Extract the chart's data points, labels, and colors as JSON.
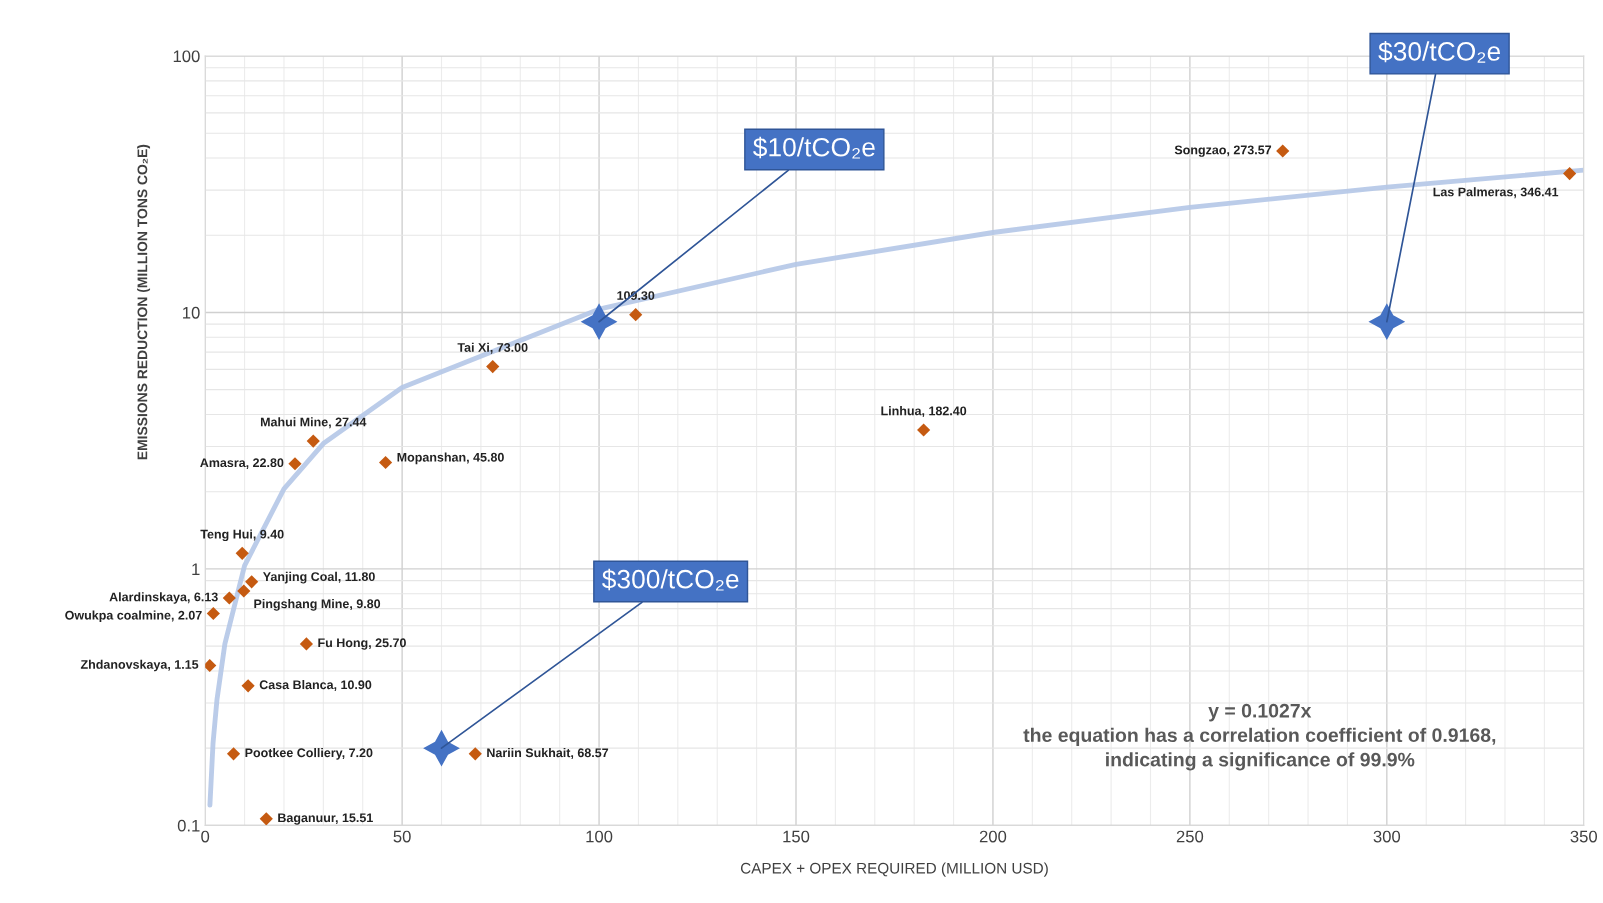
{
  "chart_data": {
    "type": "scatter",
    "xlabel": "CAPEX + OPEX REQUIRED (MILLION USD)",
    "ylabel": "EMISSIONS REDUCTION (MILLION TONS CO₂E)",
    "xlim": [
      0,
      350
    ],
    "xticks": [
      0,
      50,
      100,
      150,
      200,
      250,
      300,
      350
    ],
    "ylim": [
      0.1,
      100
    ],
    "yticks": [
      0.1,
      1,
      10,
      100
    ],
    "log": "y",
    "grid": true,
    "series": [
      {
        "type": "line",
        "color": "#b4c7e7",
        "marker": "none",
        "line_style": "solid",
        "x": [
          1.2,
          2,
          3,
          5,
          10,
          20,
          30,
          50,
          100,
          150,
          200,
          250,
          300,
          350
        ],
        "values": [
          0.12,
          0.21,
          0.31,
          0.51,
          1.03,
          2.05,
          3.08,
          5.1,
          10.3,
          15.4,
          20.5,
          25.7,
          30.8,
          35.9
        ]
      },
      {
        "color": "#c55a11",
        "marker": "diamond",
        "x": [
          273.57,
          346.41,
          109.3,
          73.0,
          182.4,
          27.44,
          22.8,
          45.8,
          9.4,
          11.8,
          9.8,
          6.13,
          2.07,
          25.7,
          1.15,
          10.9,
          7.2,
          68.57,
          15.51
        ],
        "values": [
          42.6,
          34.8,
          9.8,
          6.15,
          3.48,
          3.15,
          2.57,
          2.6,
          1.15,
          0.89,
          0.82,
          0.77,
          0.67,
          0.51,
          0.42,
          0.35,
          0.19,
          0.19,
          0.106
        ]
      },
      {
        "color": "#4472c4",
        "marker": "star",
        "x": [
          100,
          60,
          300
        ],
        "values": [
          9.2,
          0.2,
          9.2
        ]
      }
    ],
    "annotations": [
      {
        "text": "Songzao, 273.57",
        "x": 273.57,
        "y": 42.6
      },
      {
        "text": "Las Palmeras, 346.41",
        "x": 346.41,
        "y": 34.8
      },
      {
        "text": "109.30",
        "x": 109.3,
        "y": 9.8
      },
      {
        "text": "Tai Xi, 73.00",
        "x": 73.0,
        "y": 6.15
      },
      {
        "text": "Linhua, 182.40",
        "x": 182.4,
        "y": 3.48
      },
      {
        "text": "Mahui Mine, 27.44",
        "x": 27.44,
        "y": 3.15
      },
      {
        "text": "Amasra, 22.80",
        "x": 22.8,
        "y": 2.57
      },
      {
        "text": "Mopanshan, 45.80",
        "x": 45.8,
        "y": 2.6
      },
      {
        "text": "Teng Hui, 9.40",
        "x": 9.4,
        "y": 1.15
      },
      {
        "text": "Yanjing Coal, 11.80",
        "x": 11.8,
        "y": 0.89
      },
      {
        "text": "Pingshang Mine, 9.80",
        "x": 9.8,
        "y": 0.82
      },
      {
        "text": "Alardinskaya, 6.13",
        "x": 6.13,
        "y": 0.77
      },
      {
        "text": "Owukpa coalmine, 2.07",
        "x": 2.07,
        "y": 0.67
      },
      {
        "text": "Fu Hong, 25.70",
        "x": 25.7,
        "y": 0.51
      },
      {
        "text": "Zhdanovskaya, 1.15",
        "x": 1.15,
        "y": 0.42
      },
      {
        "text": "Casa Blanca, 10.90",
        "x": 10.9,
        "y": 0.35
      },
      {
        "text": "Pootkee Colliery, 7.20",
        "x": 7.2,
        "y": 0.19
      },
      {
        "text": "Nariin Sukhait, 68.57",
        "x": 68.57,
        "y": 0.19
      },
      {
        "text": "Baganuur, 15.51",
        "x": 15.51,
        "y": 0.106
      },
      {
        "text": "$10/tCO₂e",
        "x": 100,
        "y": 9.2
      },
      {
        "text": "$300/tCO₂e",
        "x": 60,
        "y": 0.2
      },
      {
        "text": "$30/tCO₂e",
        "x": 300,
        "y": 9.2
      },
      "y = 0.1027x\nthe equation has a correlation coefficient of 0.9168,\nindicating a significance of 99.9%"
    ]
  }
}
